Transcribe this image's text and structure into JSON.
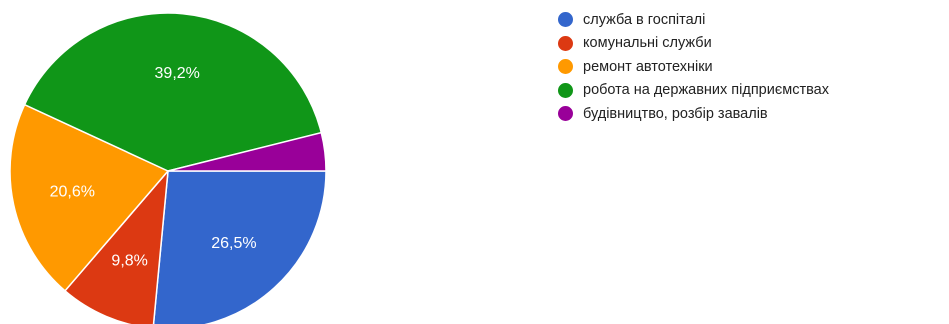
{
  "chart_data": {
    "type": "pie",
    "start": "clockwise from 3 o'clock",
    "slices": [
      {
        "label": "служба в госпіталі",
        "value": 26.5,
        "value_label": "26,5%",
        "color": "#3366cc"
      },
      {
        "label": "комунальні служби",
        "value": 9.8,
        "value_label": "9,8%",
        "color": "#dc3912"
      },
      {
        "label": "ремонт автотехніки",
        "value": 20.6,
        "value_label": "20,6%",
        "color": "#ff9900"
      },
      {
        "label": "робота на державних підприємствах",
        "value": 39.2,
        "value_label": "39,2%",
        "color": "#109618"
      },
      {
        "label": "будівництво, розбір завалів",
        "value": 3.9,
        "value_label": "",
        "color": "#990099"
      }
    ],
    "legend_placement": "right"
  }
}
